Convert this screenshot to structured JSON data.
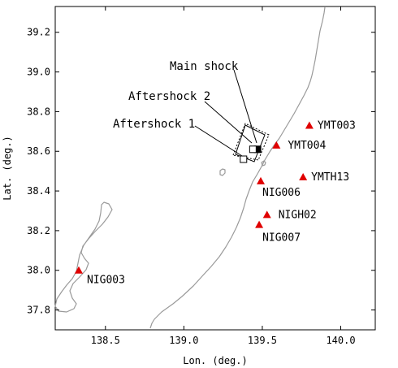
{
  "axes": {
    "xlabel": "Lon. (deg.)",
    "ylabel": "Lat. (deg.)",
    "xlim": [
      138.18,
      140.22
    ],
    "ylim": [
      37.7,
      39.33
    ],
    "xticks": [
      138.5,
      139.0,
      139.5,
      140.0
    ],
    "xtick_labels": [
      "138.5",
      "139.0",
      "139.5",
      "140.0"
    ],
    "yticks": [
      37.8,
      38.0,
      38.2,
      38.4,
      38.6,
      38.8,
      39.0,
      39.2
    ],
    "ytick_labels": [
      "37.8",
      "38.0",
      "38.2",
      "38.4",
      "38.6",
      "38.8",
      "39.0",
      "39.2"
    ]
  },
  "colors": {
    "station": "#e00000",
    "coastline": "#9a9a9a"
  },
  "stations": [
    {
      "name": "YMT003",
      "lon": 139.8,
      "lat": 38.73
    },
    {
      "name": "YMT004",
      "lon": 139.59,
      "lat": 38.63
    },
    {
      "name": "YMTH13",
      "lon": 139.76,
      "lat": 38.47
    },
    {
      "name": "NIG006",
      "lon": 139.49,
      "lat": 38.45
    },
    {
      "name": "NIGH02",
      "lon": 139.53,
      "lat": 38.28
    },
    {
      "name": "NIG007",
      "lon": 139.48,
      "lat": 38.23
    },
    {
      "name": "NIG003",
      "lon": 138.33,
      "lat": 38.0
    }
  ],
  "events": [
    {
      "name": "Main shock",
      "lon": 139.47,
      "lat": 38.61,
      "marker": "filled-square"
    },
    {
      "name": "Aftershock 2",
      "lon": 139.44,
      "lat": 38.61,
      "marker": "open-square"
    },
    {
      "name": "Aftershock 1",
      "lon": 139.38,
      "lat": 38.56,
      "marker": "open-square"
    }
  ],
  "chart_data": {
    "type": "scatter",
    "xlabel": "Lon. (deg.)",
    "ylabel": "Lat. (deg.)",
    "xlim": [
      138.18,
      140.22
    ],
    "ylim": [
      37.7,
      39.33
    ],
    "series": [
      {
        "name": "",
        "points": [
          {
            "label": "YMT003",
            "x": 139.8,
            "y": 38.73
          },
          {
            "label": "YMT004",
            "x": 139.59,
            "y": 38.63
          },
          {
            "label": "YMTH13",
            "x": 139.76,
            "y": 38.47
          },
          {
            "label": "NIG006",
            "x": 139.49,
            "y": 38.45
          },
          {
            "label": "NIGH02",
            "x": 139.53,
            "y": 38.28
          },
          {
            "label": "NIG007",
            "x": 139.48,
            "y": 38.23
          },
          {
            "label": "NIG003",
            "x": 138.33,
            "y": 38.0
          }
        ]
      },
      {
        "name": "",
        "points": [
          {
            "label": "Main shock",
            "x": 139.47,
            "y": 38.61
          },
          {
            "label": "Aftershock 2",
            "x": 139.44,
            "y": 38.61
          },
          {
            "label": "Aftershock 1",
            "x": 139.38,
            "y": 38.56
          }
        ]
      }
    ],
    "grid": false
  }
}
